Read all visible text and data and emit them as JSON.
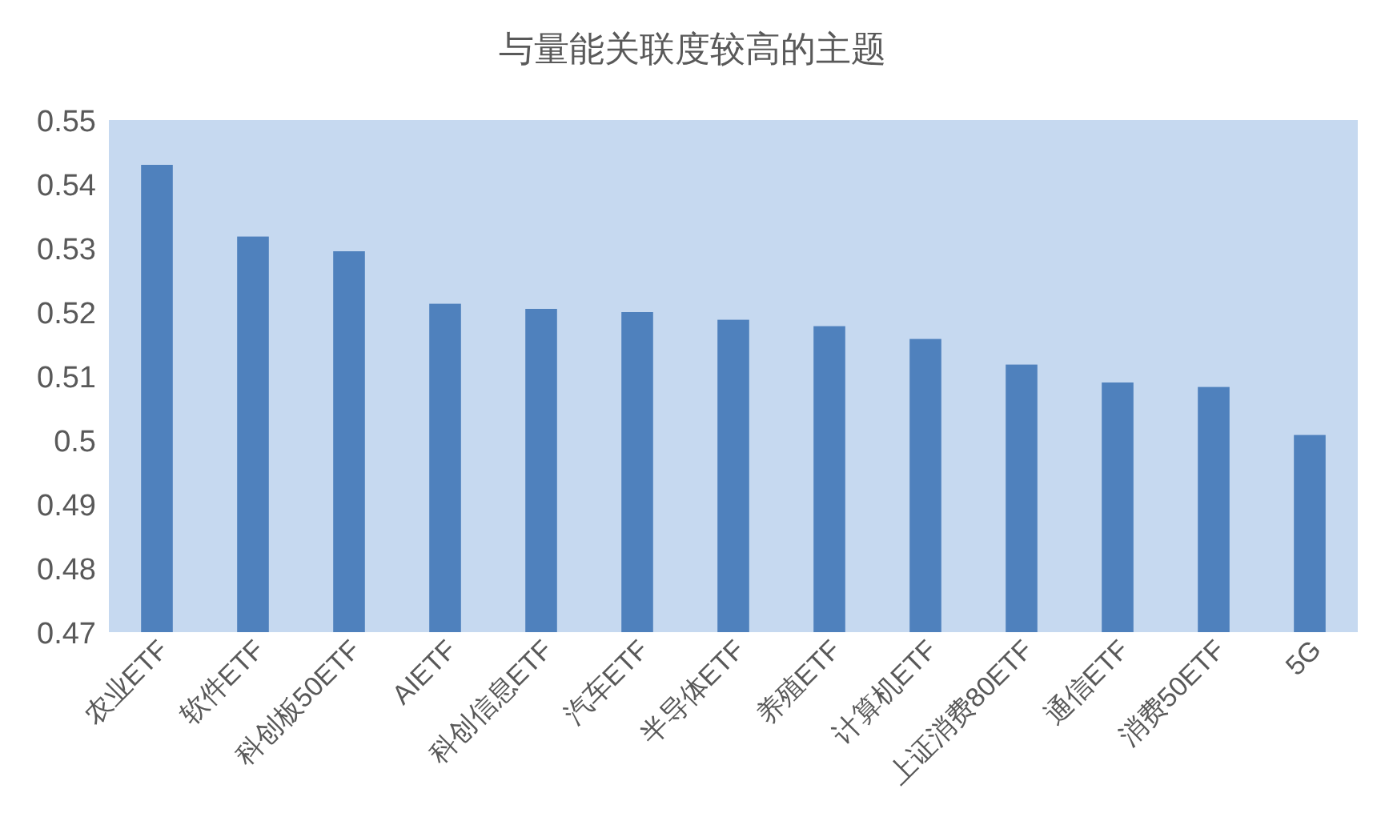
{
  "chart_data": {
    "type": "bar",
    "title": "与量能关联度较高的主题",
    "categories": [
      "农业ETF",
      "软件ETF",
      "科创板50ETF",
      "AIETF",
      "科创信息ETF",
      "汽车ETF",
      "半导体ETF",
      "养殖ETF",
      "计算机ETF",
      "上证消费80ETF",
      "通信ETF",
      "消费50ETF",
      "5G"
    ],
    "values": [
      0.543,
      0.5318,
      0.5295,
      0.5213,
      0.5205,
      0.52,
      0.5188,
      0.5178,
      0.5158,
      0.5118,
      0.509,
      0.5083,
      0.5008
    ],
    "color": "#4f81bd",
    "ylim": [
      0.47,
      0.55
    ],
    "yticks": [
      0.47,
      0.48,
      0.49,
      0.5,
      0.51,
      0.52,
      0.53,
      0.54,
      0.55
    ],
    "grid": false
  }
}
